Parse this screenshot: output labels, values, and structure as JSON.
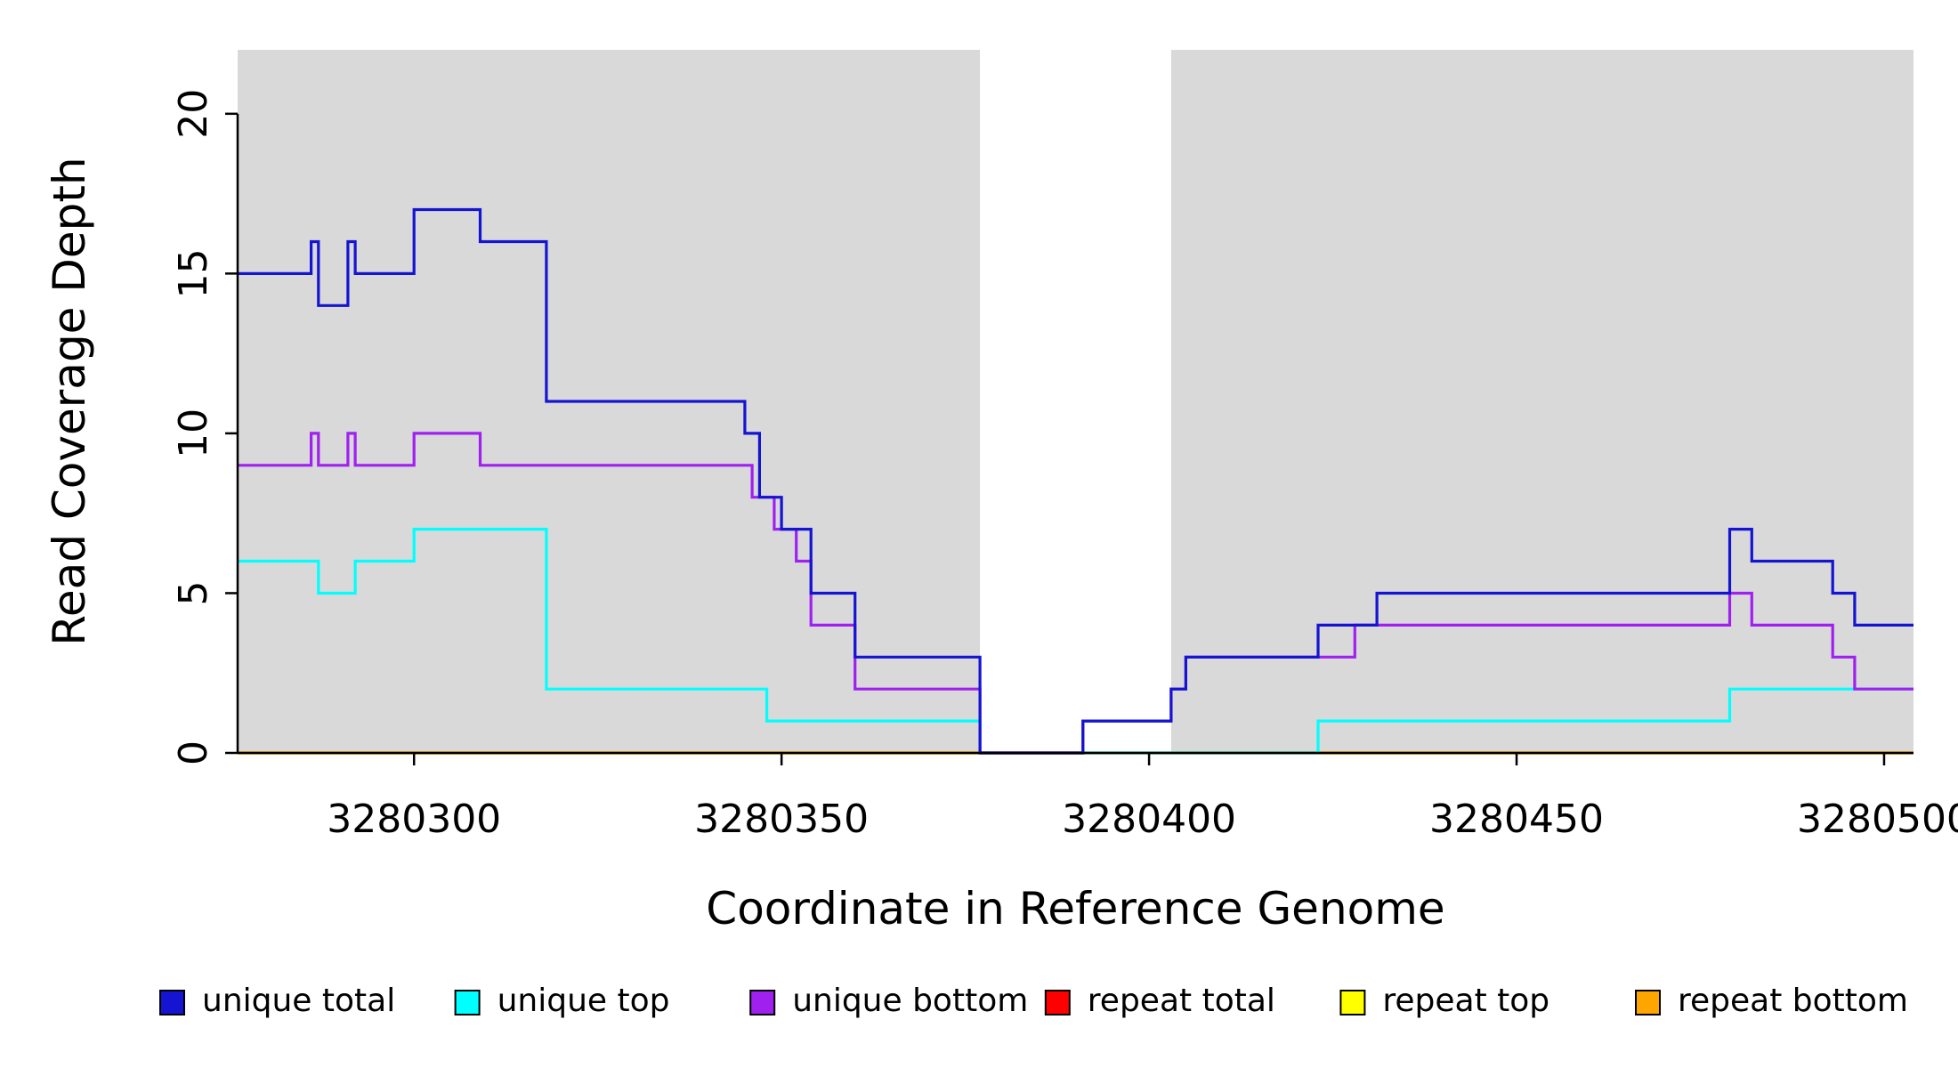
{
  "figure": {
    "background_color": "#ffffff",
    "panel_color": "#d9d9d9",
    "axis_color": "#000000"
  },
  "chart_data": {
    "type": "line",
    "line_style": "step",
    "title": "",
    "xlabel": "Coordinate in Reference Genome",
    "ylabel": "Read Coverage Depth",
    "xlim": [
      3280276,
      3280504
    ],
    "ylim": [
      0,
      22
    ],
    "xticks": [
      3280300,
      3280350,
      3280400,
      3280450,
      3280500
    ],
    "xtick_labels": [
      "3280300",
      "3280350",
      "3280400",
      "3280450",
      "3280500"
    ],
    "yticks": [
      0,
      5,
      10,
      15,
      20
    ],
    "ytick_labels": [
      "0",
      "5",
      "10",
      "15",
      "20"
    ],
    "grid": false,
    "legend_position": "bottom",
    "shaded_regions": [
      {
        "x0": 3280276,
        "x1": 3280377,
        "color": "#d9d9d9"
      },
      {
        "x0": 3280403,
        "x1": 3280504,
        "color": "#d9d9d9"
      }
    ],
    "draw_order": [
      3,
      4,
      5,
      1,
      2,
      0
    ],
    "series": [
      {
        "name": "unique total",
        "slug": "unique-total",
        "color": "#1414d2",
        "step_points": [
          [
            3280276,
            15
          ],
          [
            3280286,
            16
          ],
          [
            3280287,
            14
          ],
          [
            3280291,
            16
          ],
          [
            3280292,
            15
          ],
          [
            3280300,
            17
          ],
          [
            3280309,
            16
          ],
          [
            3280318,
            11
          ],
          [
            3280345,
            10
          ],
          [
            3280347,
            8
          ],
          [
            3280350,
            7
          ],
          [
            3280354,
            5
          ],
          [
            3280360,
            3
          ],
          [
            3280377,
            0
          ],
          [
            3280391,
            1
          ],
          [
            3280403,
            2
          ],
          [
            3280405,
            3
          ],
          [
            3280423,
            4
          ],
          [
            3280431,
            5
          ],
          [
            3280479,
            7
          ],
          [
            3280482,
            6
          ],
          [
            3280493,
            5
          ],
          [
            3280496,
            4
          ]
        ]
      },
      {
        "name": "unique top",
        "slug": "unique-top",
        "color": "#00ffff",
        "step_points": [
          [
            3280276,
            6
          ],
          [
            3280287,
            5
          ],
          [
            3280292,
            6
          ],
          [
            3280300,
            7
          ],
          [
            3280318,
            2
          ],
          [
            3280348,
            1
          ],
          [
            3280377,
            0
          ],
          [
            3280423,
            1
          ],
          [
            3280479,
            2
          ]
        ]
      },
      {
        "name": "unique bottom",
        "slug": "unique-bottom",
        "color": "#a020f0",
        "step_points": [
          [
            3280276,
            9
          ],
          [
            3280286,
            10
          ],
          [
            3280287,
            9
          ],
          [
            3280291,
            10
          ],
          [
            3280292,
            9
          ],
          [
            3280300,
            10
          ],
          [
            3280309,
            9
          ],
          [
            3280346,
            8
          ],
          [
            3280349,
            7
          ],
          [
            3280352,
            6
          ],
          [
            3280354,
            4
          ],
          [
            3280360,
            2
          ],
          [
            3280377,
            0
          ],
          [
            3280391,
            1
          ],
          [
            3280403,
            2
          ],
          [
            3280405,
            3
          ],
          [
            3280428,
            4
          ],
          [
            3280479,
            5
          ],
          [
            3280482,
            4
          ],
          [
            3280493,
            3
          ],
          [
            3280496,
            2
          ]
        ]
      },
      {
        "name": "repeat total",
        "slug": "repeat-total",
        "color": "#ff0000",
        "step_points": [
          [
            3280276,
            0
          ]
        ]
      },
      {
        "name": "repeat top",
        "slug": "repeat-top",
        "color": "#ffff00",
        "step_points": [
          [
            3280276,
            0
          ]
        ]
      },
      {
        "name": "repeat bottom",
        "slug": "repeat-bottom",
        "color": "#ffa500",
        "step_points": [
          [
            3280276,
            0
          ]
        ]
      }
    ]
  }
}
